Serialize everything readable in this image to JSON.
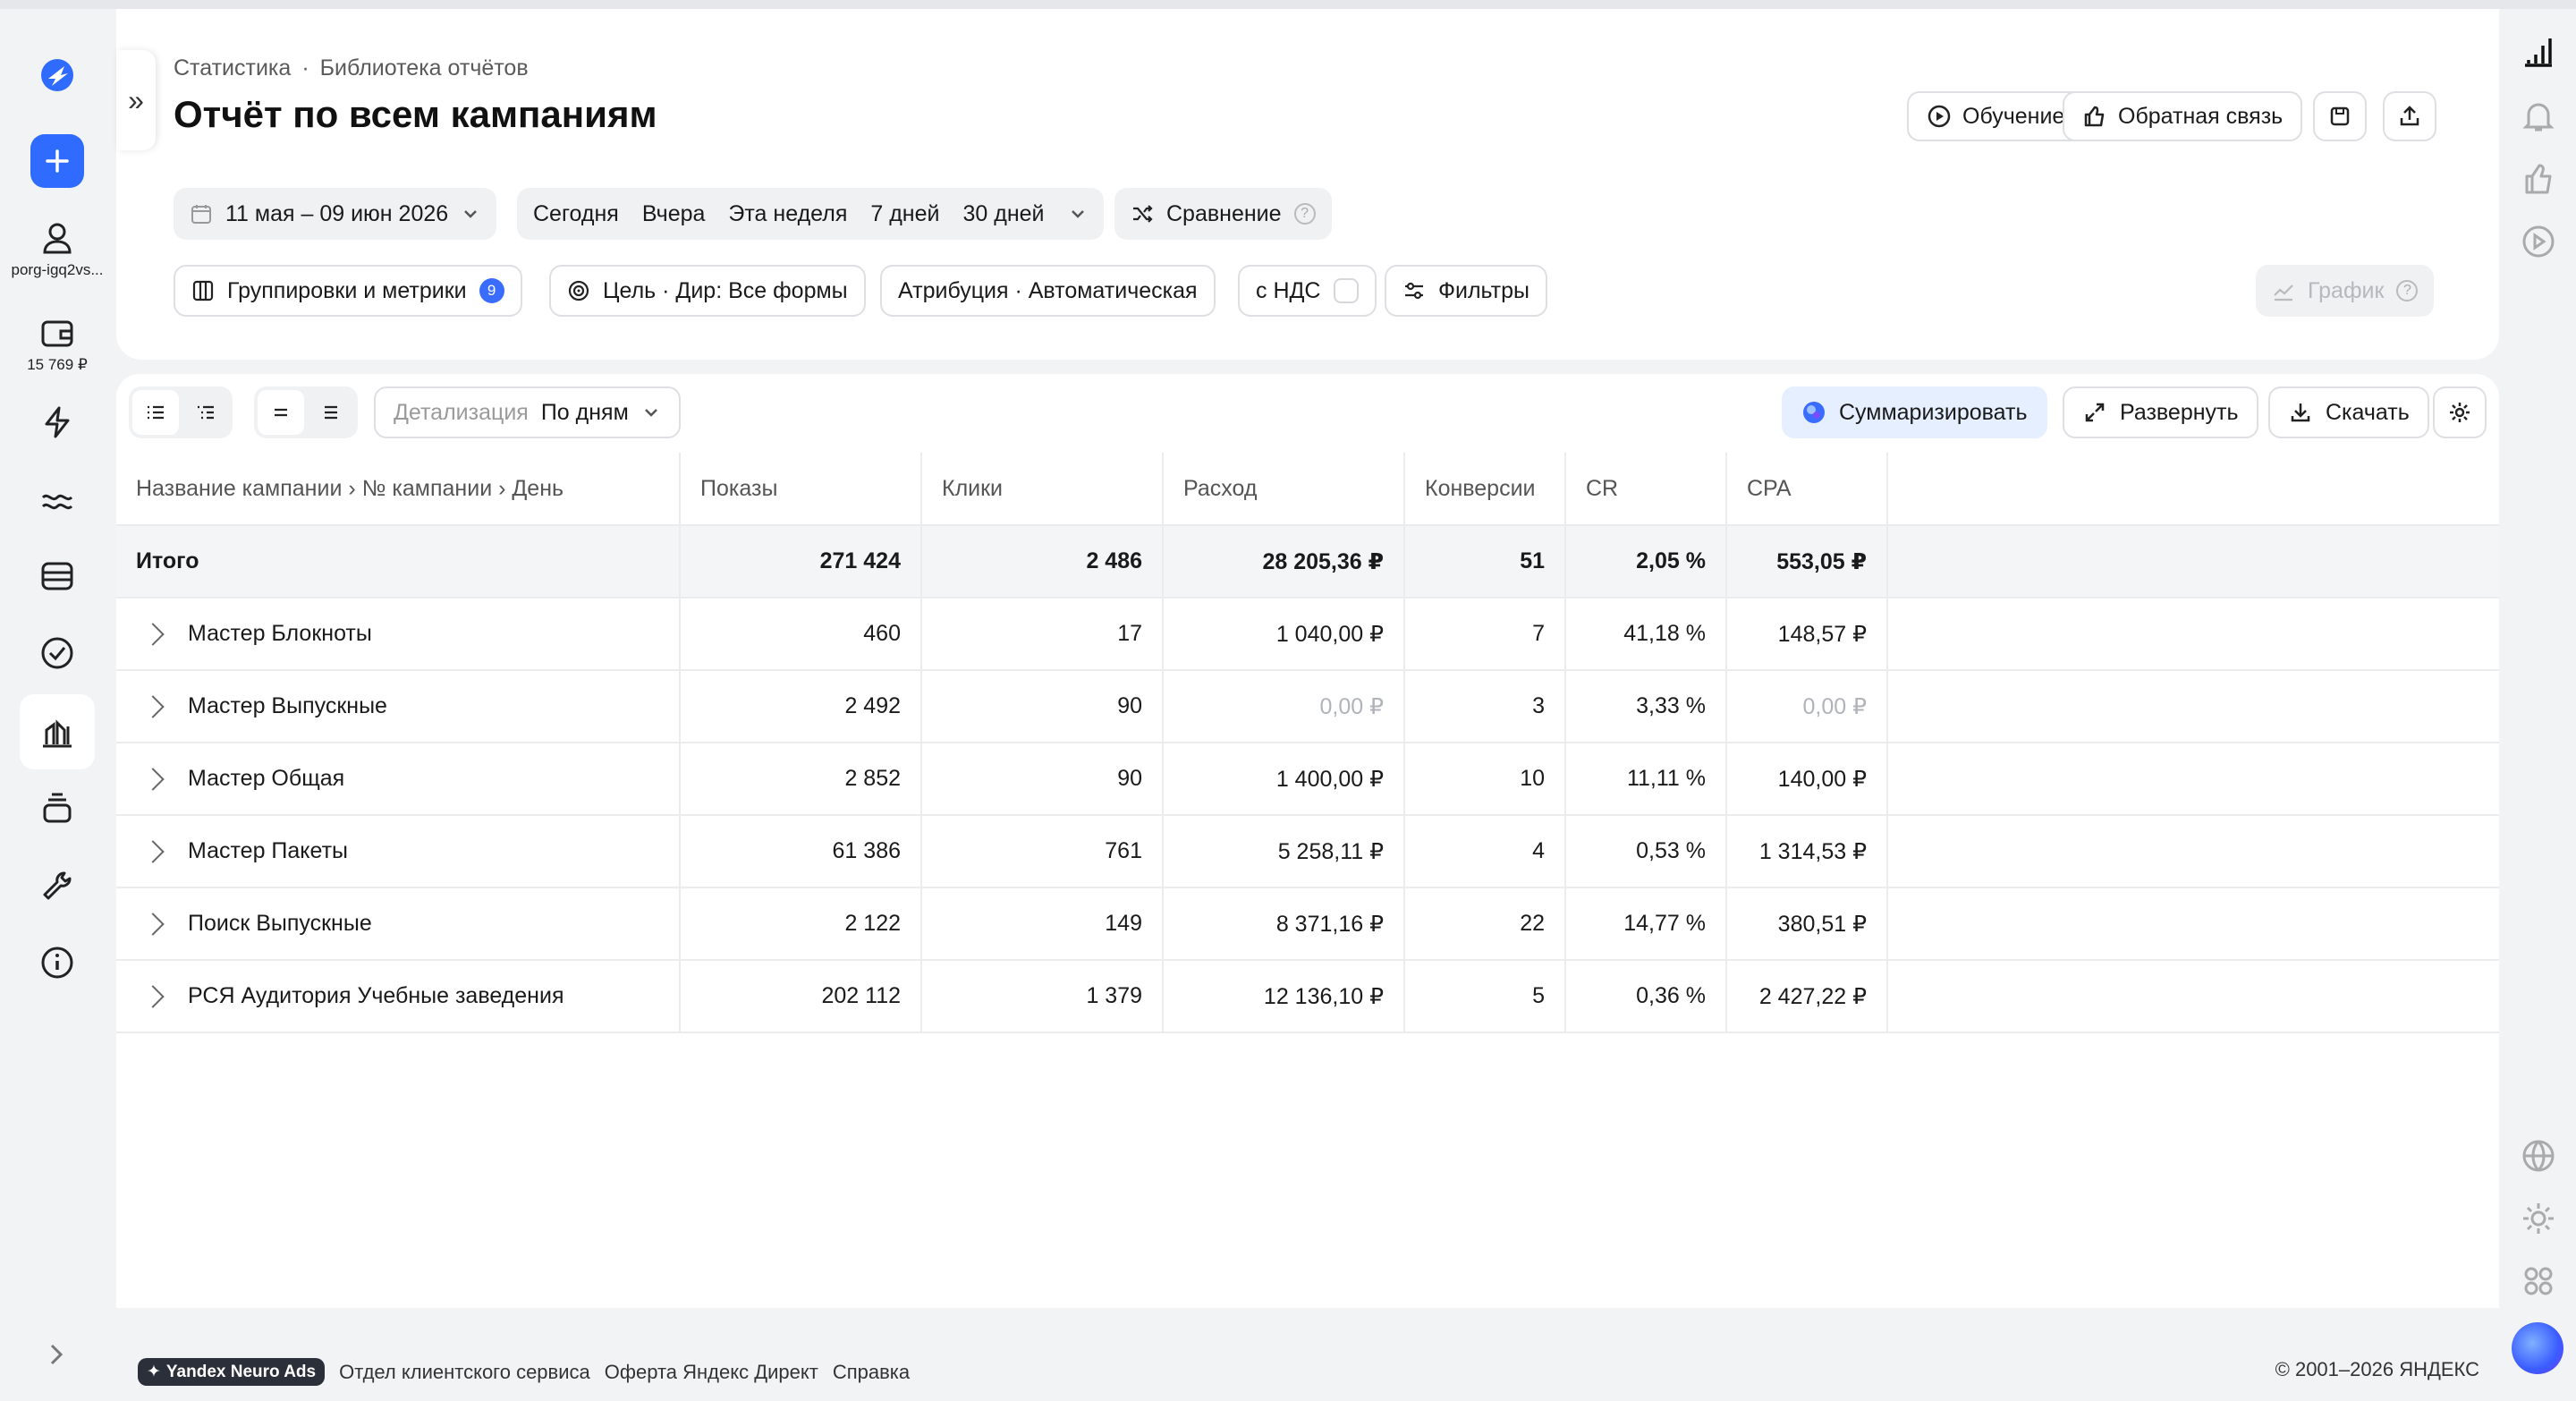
{
  "sidebar": {
    "user_label": "porg-igq2vs...",
    "balance": "15 769 ₽",
    "icons": [
      "logo-icon",
      "plus-icon",
      "user-icon",
      "wallet-icon",
      "bolt-icon",
      "wave-icon",
      "database-icon",
      "check-circle-icon",
      "chart-icon",
      "stack-icon",
      "wrench-icon",
      "info-icon"
    ]
  },
  "header": {
    "breadcrumb": [
      "Статистика",
      "·",
      "Библиотека отчётов"
    ],
    "title": "Отчёт по всем кампаниям",
    "buttons": {
      "learning": "Обучение",
      "feedback": "Обратная связь"
    }
  },
  "filters": {
    "date_range": "11 мая – 09 июн 2026",
    "presets": [
      "Сегодня",
      "Вчера",
      "Эта неделя",
      "7 дней",
      "30 дней"
    ],
    "compare": "Сравнение",
    "groupings": "Группировки и метрики",
    "groupings_count": "9",
    "goal": "Цель · Дир: Все формы",
    "attribution": "Атрибуция · Автоматическая",
    "vat": "с НДС",
    "filters_btn": "Фильтры",
    "chart_btn": "График"
  },
  "toolbar": {
    "detail_label": "Детализация",
    "detail_value": "По дням",
    "summarize": "Суммаризировать",
    "expand": "Развернуть",
    "download": "Скачать"
  },
  "table": {
    "columns": [
      "Название кампании › № кампании › День",
      "Показы",
      "Клики",
      "Расход",
      "Конверсии",
      "CR",
      "CPA"
    ],
    "total": {
      "name": "Итого",
      "shows": "271 424",
      "clicks": "2 486",
      "cost": "28 205,36 ₽",
      "conv": "51",
      "cr": "2,05 %",
      "cpa": "553,05 ₽"
    },
    "rows": [
      {
        "name": "Мастер Блокноты",
        "shows": "460",
        "clicks": "17",
        "cost": "1 040,00 ₽",
        "conv": "7",
        "cr": "41,18 %",
        "cpa": "148,57 ₽"
      },
      {
        "name": "Мастер Выпускные",
        "shows": "2 492",
        "clicks": "90",
        "cost": "0,00 ₽",
        "conv": "3",
        "cr": "3,33 %",
        "cpa": "0,00 ₽"
      },
      {
        "name": "Мастер Общая",
        "shows": "2 852",
        "clicks": "90",
        "cost": "1 400,00 ₽",
        "conv": "10",
        "cr": "11,11 %",
        "cpa": "140,00 ₽"
      },
      {
        "name": "Мастер Пакеты",
        "shows": "61 386",
        "clicks": "761",
        "cost": "5 258,11 ₽",
        "conv": "4",
        "cr": "0,53 %",
        "cpa": "1 314,53 ₽"
      },
      {
        "name": "Поиск Выпускные",
        "shows": "2 122",
        "clicks": "149",
        "cost": "8 371,16 ₽",
        "conv": "22",
        "cr": "14,77 %",
        "cpa": "380,51 ₽"
      },
      {
        "name": "РСЯ Аудитория Учебные заведения",
        "shows": "202 112",
        "clicks": "1 379",
        "cost": "12 136,10 ₽",
        "conv": "5",
        "cr": "0,36 %",
        "cpa": "2 427,22 ₽"
      }
    ]
  },
  "footer": {
    "neuro": "Yandex Neuro Ads",
    "links": [
      "Отдел клиентского сервиса",
      "Оферта Яндекс Директ",
      "Справка"
    ],
    "copyright": "© 2001–2026 ЯНДЕКС"
  },
  "colors": {
    "accent": "#2f6bff",
    "background": "#f2f3f5"
  }
}
